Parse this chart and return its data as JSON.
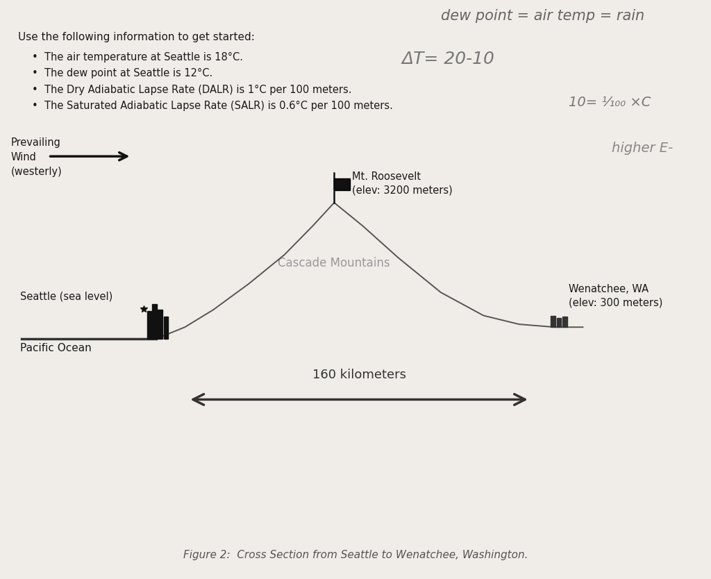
{
  "bg_color": "#f0ede8",
  "text_color": "#1a1a1a",
  "gray_color": "#888888",
  "dark_color": "#333333",
  "title_handwritten": "dew point = air temp = rain",
  "intro_text": "Use the following information to get started:",
  "bullets": [
    "The air temperature at Seattle is 18°C.",
    "The dew point at Seattle is 12°C.",
    "The Dry Adiabatic Lapse Rate (DALR) is 1°C per 100 meters.",
    "The Saturated Adiabatic Lapse Rate (SALR) is 0.6°C per 100 meters."
  ],
  "prevailing_wind_label": "Prevailing\nWind\n(westerly)",
  "mt_roosevelt_label": "Mt. Roosevelt\n(elev: 3200 meters)",
  "cascade_label": "Cascade Mountains",
  "seattle_label": "Seattle (sea level)",
  "pacific_label": "Pacific Ocean",
  "wenatchee_label": "Wenatchee, WA\n(elev: 300 meters)",
  "distance_label": "160 kilometers",
  "figure_caption": "Figure 2:  Cross Section from Seattle to Wenatchee, Washington.",
  "hw_delta_t": "ΔT= 20-10",
  "hw_formula": "10= ¹⁄₁₀₀ ×C",
  "hw_higher": "higher E-"
}
